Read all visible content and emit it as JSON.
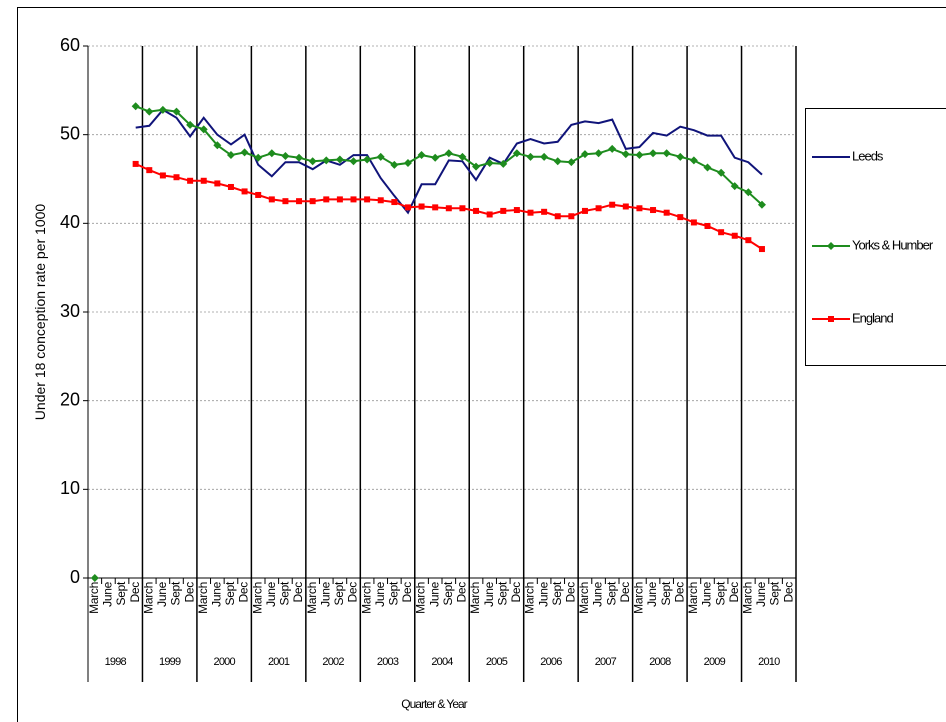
{
  "chart_data": {
    "type": "line",
    "y_axis_label": "Under 18 conception rate per 1000",
    "x_axis_label": "Quarter & Year",
    "categories": [
      "March",
      "June",
      "Sept",
      "Dec",
      "March",
      "June",
      "Sept",
      "Dec",
      "March",
      "June",
      "Sept",
      "Dec",
      "March",
      "June",
      "Sept",
      "Dec",
      "March",
      "June",
      "Sept",
      "Dec",
      "March",
      "June",
      "Sept",
      "Dec",
      "March",
      "June",
      "Sept",
      "Dec",
      "March",
      "June",
      "Sept",
      "Dec",
      "March",
      "June",
      "Sept",
      "Dec",
      "March",
      "June",
      "Sept",
      "Dec",
      "March",
      "June",
      "Sept",
      "Dec",
      "March",
      "June",
      "Sept",
      "Dec",
      "March",
      "June",
      "Sept",
      "Dec"
    ],
    "years": [
      "1998",
      "1999",
      "2000",
      "2001",
      "2002",
      "2003",
      "2004",
      "2005",
      "2006",
      "2007",
      "2008",
      "2009",
      "2010"
    ],
    "ylim": [
      0,
      60
    ],
    "yticks": [
      0,
      10,
      20,
      30,
      40,
      50,
      60
    ],
    "grid": true,
    "legend_position": "right",
    "series": [
      {
        "name": "Leeds",
        "color": "#10147a",
        "marker": "none",
        "values": [
          null,
          null,
          null,
          50.8,
          51.0,
          52.8,
          51.9,
          49.8,
          51.9,
          50.0,
          48.9,
          50.0,
          46.6,
          45.3,
          46.9,
          46.9,
          46.1,
          47.1,
          46.6,
          47.7,
          47.7,
          45.1,
          43.1,
          41.2,
          44.4,
          44.4,
          47.1,
          47.0,
          44.9,
          47.4,
          46.7,
          49.0,
          49.5,
          49.0,
          49.2,
          51.1,
          51.5,
          51.3,
          51.7,
          48.4,
          48.6,
          50.2,
          49.9,
          50.9,
          50.5,
          49.9,
          49.9,
          47.4,
          46.9,
          45.5,
          null,
          null
        ]
      },
      {
        "name": "Yorks & Humber",
        "color": "#1e8c1e",
        "marker": "diamond",
        "values": [
          0,
          null,
          null,
          53.2,
          52.6,
          52.8,
          52.6,
          51.1,
          50.6,
          48.8,
          47.7,
          48.0,
          47.4,
          47.9,
          47.6,
          47.4,
          47.0,
          47.1,
          47.2,
          47.0,
          47.2,
          47.5,
          46.6,
          46.8,
          47.7,
          47.4,
          47.9,
          47.5,
          46.4,
          46.8,
          46.7,
          47.9,
          47.5,
          47.5,
          47.0,
          46.9,
          47.8,
          47.9,
          48.4,
          47.8,
          47.7,
          47.9,
          47.9,
          47.5,
          47.1,
          46.3,
          45.7,
          44.2,
          43.5,
          42.1,
          null,
          null
        ]
      },
      {
        "name": "England",
        "color": "#ff0000",
        "marker": "square",
        "values": [
          null,
          null,
          null,
          46.7,
          46.0,
          45.4,
          45.2,
          44.8,
          44.8,
          44.5,
          44.1,
          43.6,
          43.2,
          42.7,
          42.5,
          42.5,
          42.5,
          42.7,
          42.7,
          42.7,
          42.7,
          42.6,
          42.4,
          41.8,
          41.9,
          41.8,
          41.7,
          41.7,
          41.4,
          41.0,
          41.4,
          41.5,
          41.2,
          41.3,
          40.8,
          40.8,
          41.4,
          41.7,
          42.1,
          41.9,
          41.7,
          41.5,
          41.2,
          40.7,
          40.1,
          39.7,
          39.0,
          38.6,
          38.1,
          37.1,
          null,
          null
        ]
      }
    ]
  }
}
